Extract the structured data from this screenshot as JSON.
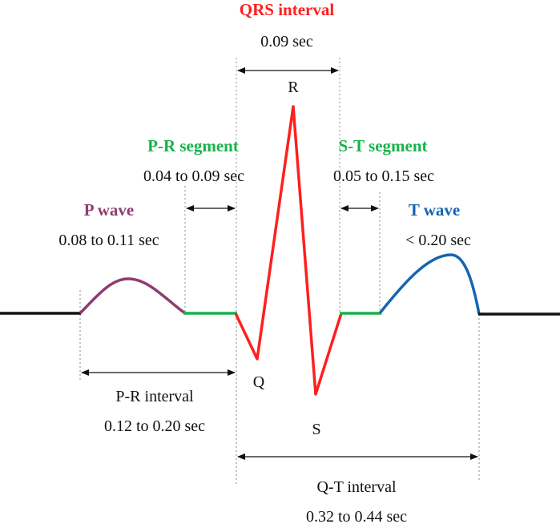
{
  "colors": {
    "baseline": "#111111",
    "p_wave": "#8e3c6e",
    "segment": "#19b24a",
    "qrs": "#ff1f1f",
    "t_wave": "#1565b0"
  },
  "labels": {
    "qrs_interval": {
      "title": "QRS interval",
      "duration": "0.09 sec"
    },
    "pr_segment": {
      "title": "P-R segment",
      "duration": "0.04 to 0.09 sec"
    },
    "st_segment": {
      "title": "S-T segment",
      "duration": "0.05 to 0.15 sec"
    },
    "p_wave": {
      "title": "P wave",
      "duration": "0.08 to 0.11 sec"
    },
    "t_wave": {
      "title": "T wave",
      "duration": "< 0.20 sec"
    },
    "pr_interval": {
      "title": "P-R interval",
      "duration": "0.12 to 0.20 sec"
    },
    "qt_interval": {
      "title": "Q-T interval",
      "duration": "0.32 to 0.44 sec"
    },
    "points": {
      "q": "Q",
      "r": "R",
      "s": "S"
    }
  }
}
